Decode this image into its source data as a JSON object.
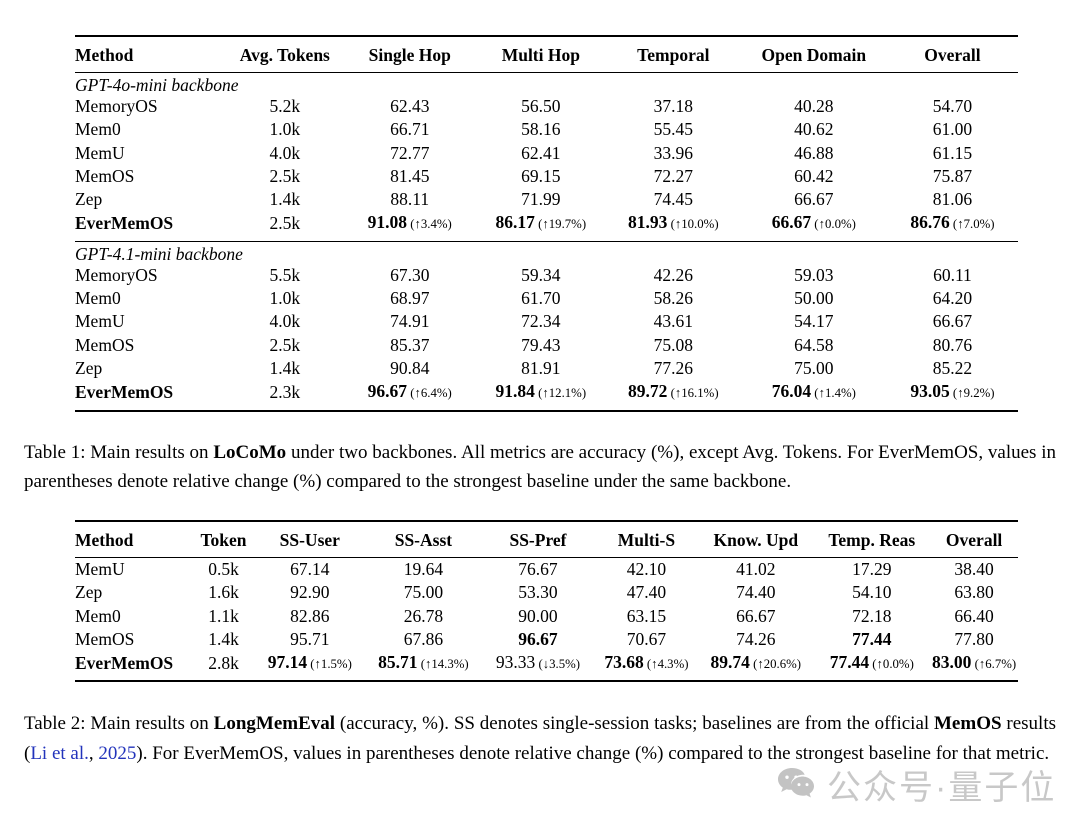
{
  "page": {
    "background": "#ffffff",
    "text_color": "#000000",
    "citation_color": "#2233bb",
    "watermark_color": "#c3c3c3"
  },
  "table1": {
    "columns": [
      "Method",
      "Avg. Tokens",
      "Single Hop",
      "Multi Hop",
      "Temporal",
      "Open Domain",
      "Overall"
    ],
    "sections": [
      {
        "group": "GPT-4o-mini backbone",
        "rows": [
          {
            "method": "MemoryOS",
            "bold": false,
            "values": [
              "5.2k",
              "62.43",
              "56.50",
              "37.18",
              "40.28",
              "54.70"
            ]
          },
          {
            "method": "Mem0",
            "bold": false,
            "values": [
              "1.0k",
              "66.71",
              "58.16",
              "55.45",
              "40.62",
              "61.00"
            ]
          },
          {
            "method": "MemU",
            "bold": false,
            "values": [
              "4.0k",
              "72.77",
              "62.41",
              "33.96",
              "46.88",
              "61.15"
            ]
          },
          {
            "method": "MemOS",
            "bold": false,
            "values": [
              "2.5k",
              "81.45",
              "69.15",
              "72.27",
              "60.42",
              "75.87"
            ]
          },
          {
            "method": "Zep",
            "bold": false,
            "values": [
              "1.4k",
              "88.11",
              "71.99",
              "74.45",
              "66.67",
              "81.06"
            ]
          },
          {
            "method": "EverMemOS",
            "bold": true,
            "values": [
              "2.5k",
              {
                "t": "91.08",
                "b": true,
                "n": "(↑3.4%)"
              },
              {
                "t": "86.17",
                "b": true,
                "n": "(↑19.7%)"
              },
              {
                "t": "81.93",
                "b": true,
                "n": "(↑10.0%)"
              },
              {
                "t": "66.67",
                "b": true,
                "n": "(↑0.0%)"
              },
              {
                "t": "86.76",
                "b": true,
                "n": "(↑7.0%)"
              }
            ]
          }
        ]
      },
      {
        "group": "GPT-4.1-mini backbone",
        "rows": [
          {
            "method": "MemoryOS",
            "bold": false,
            "values": [
              "5.5k",
              "67.30",
              "59.34",
              "42.26",
              "59.03",
              "60.11"
            ]
          },
          {
            "method": "Mem0",
            "bold": false,
            "values": [
              "1.0k",
              "68.97",
              "61.70",
              "58.26",
              "50.00",
              "64.20"
            ]
          },
          {
            "method": "MemU",
            "bold": false,
            "values": [
              "4.0k",
              "74.91",
              "72.34",
              "43.61",
              "54.17",
              "66.67"
            ]
          },
          {
            "method": "MemOS",
            "bold": false,
            "values": [
              "2.5k",
              "85.37",
              "79.43",
              "75.08",
              "64.58",
              "80.76"
            ]
          },
          {
            "method": "Zep",
            "bold": false,
            "values": [
              "1.4k",
              "90.84",
              "81.91",
              "77.26",
              "75.00",
              "85.22"
            ]
          },
          {
            "method": "EverMemOS",
            "bold": true,
            "values": [
              "2.3k",
              {
                "t": "96.67",
                "b": true,
                "n": "(↑6.4%)"
              },
              {
                "t": "91.84",
                "b": true,
                "n": "(↑12.1%)"
              },
              {
                "t": "89.72",
                "b": true,
                "n": "(↑16.1%)"
              },
              {
                "t": "76.04",
                "b": true,
                "n": "(↑1.4%)"
              },
              {
                "t": "93.05",
                "b": true,
                "n": "(↑9.2%)"
              }
            ]
          }
        ]
      }
    ]
  },
  "caption1": {
    "segments": [
      {
        "t": "Table 1: Main results on ",
        "b": false
      },
      {
        "t": "LoCoMo",
        "b": true
      },
      {
        "t": " under two backbones. All metrics are accuracy (%), except Avg. Tokens. For EverMemOS, values in parentheses denote relative change (%) compared to the strongest baseline under the same backbone.",
        "b": false
      }
    ]
  },
  "table2": {
    "columns": [
      "Method",
      "Token",
      "SS-User",
      "SS-Asst",
      "SS-Pref",
      "Multi-S",
      "Know. Upd",
      "Temp. Reas",
      "Overall"
    ],
    "sections": [
      {
        "group": null,
        "rows": [
          {
            "method": "MemU",
            "bold": false,
            "values": [
              "0.5k",
              "67.14",
              "19.64",
              "76.67",
              "42.10",
              "41.02",
              "17.29",
              "38.40"
            ]
          },
          {
            "method": "Zep",
            "bold": false,
            "values": [
              "1.6k",
              "92.90",
              "75.00",
              "53.30",
              "47.40",
              "74.40",
              "54.10",
              "63.80"
            ]
          },
          {
            "method": "Mem0",
            "bold": false,
            "values": [
              "1.1k",
              "82.86",
              "26.78",
              "90.00",
              "63.15",
              "66.67",
              "72.18",
              "66.40"
            ]
          },
          {
            "method": "MemOS",
            "bold": false,
            "values": [
              "1.4k",
              "95.71",
              "67.86",
              {
                "t": "96.67",
                "b": true,
                "n": ""
              },
              "70.67",
              "74.26",
              {
                "t": "77.44",
                "b": true,
                "n": ""
              },
              "77.80"
            ]
          },
          {
            "method": "EverMemOS",
            "bold": true,
            "values": [
              "2.8k",
              {
                "t": "97.14",
                "b": true,
                "n": "(↑1.5%)"
              },
              {
                "t": "85.71",
                "b": true,
                "n": "(↑14.3%)"
              },
              {
                "t": "93.33",
                "b": false,
                "n": "(↓3.5%)"
              },
              {
                "t": "73.68",
                "b": true,
                "n": "(↑4.3%)"
              },
              {
                "t": "89.74",
                "b": true,
                "n": "(↑20.6%)"
              },
              {
                "t": "77.44",
                "b": true,
                "n": "(↑0.0%)"
              },
              {
                "t": "83.00",
                "b": true,
                "n": "(↑6.7%)"
              }
            ]
          }
        ]
      }
    ]
  },
  "caption2": {
    "segments": [
      {
        "t": "Table 2: Main results on ",
        "b": false
      },
      {
        "t": "LongMemEval",
        "b": true
      },
      {
        "t": " (accuracy, %). SS denotes single-session tasks; baselines are from the official ",
        "b": false
      },
      {
        "t": "MemOS",
        "b": true
      },
      {
        "t": " results (",
        "b": false
      },
      {
        "t": "Li et al.",
        "b": false,
        "link": true
      },
      {
        "t": ", ",
        "b": false
      },
      {
        "t": "2025",
        "b": false,
        "link": true
      },
      {
        "t": ").  For EverMemOS, values in parentheses denote relative change (%) compared to the strongest baseline for that metric.",
        "b": false
      }
    ]
  },
  "watermark": {
    "icon": "wechat-icon",
    "text": "公众号·量子位"
  }
}
